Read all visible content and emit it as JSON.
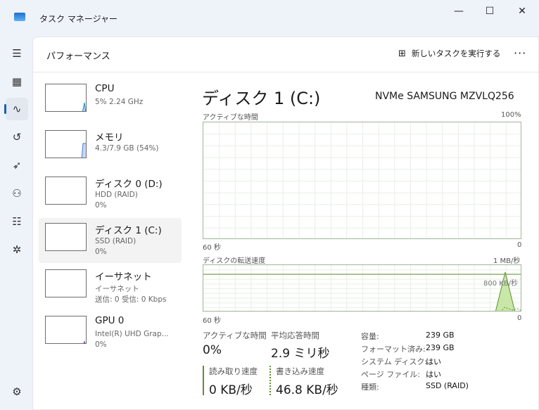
{
  "window": {
    "title": "タスク マネージャー",
    "minimize": "—",
    "maximize": "☐",
    "close": "✕"
  },
  "sidebar": {
    "items": [
      {
        "name": "hamburger-icon",
        "glyph": "☰"
      },
      {
        "name": "processes-icon",
        "glyph": "▦"
      },
      {
        "name": "performance-icon",
        "glyph": "∿"
      },
      {
        "name": "app-history-icon",
        "glyph": "↺"
      },
      {
        "name": "startup-icon",
        "glyph": "➶"
      },
      {
        "name": "users-icon",
        "glyph": "⚇"
      },
      {
        "name": "details-icon",
        "glyph": "☷"
      },
      {
        "name": "services-icon",
        "glyph": "✲"
      }
    ],
    "settings": "⚙"
  },
  "header": {
    "title": "パフォーマンス",
    "new_task": "新しいタスクを実行する",
    "more": "···"
  },
  "devices": [
    {
      "name": "CPU",
      "sub1": "5%  2.24 GHz",
      "sub2": "",
      "color": "#1e8cbf"
    },
    {
      "name": "メモリ",
      "sub1": "4.3/7.9 GB (54%)",
      "sub2": "",
      "color": "#4a7bd0"
    },
    {
      "name": "ディスク 0 (D:)",
      "sub1": "HDD (RAID)",
      "sub2": "0%",
      "color": "#5e8f2e"
    },
    {
      "name": "ディスク 1 (C:)",
      "sub1": "SSD (RAID)",
      "sub2": "0%",
      "color": "#5e8f2e"
    },
    {
      "name": "イーサネット",
      "sub1": "イーサネット",
      "sub2": "送信: 0 受信: 0 Kbps",
      "color": "#a35b20"
    },
    {
      "name": "GPU 0",
      "sub1": "Intel(R) UHD Grap...",
      "sub2": "0%",
      "color": "#7b3fb0"
    }
  ],
  "detail": {
    "title": "ディスク 1 (C:)",
    "model": "NVMe SAMSUNG MZVLQ256",
    "chart1": {
      "label": "アクティブな時間",
      "max": "100%",
      "xleft": "60 秒",
      "xright": "0"
    },
    "chart2": {
      "label": "ディスクの転送速度",
      "max": "1 MB/秒",
      "scale_line": "800 KB/秒",
      "xleft": "60 秒",
      "xright": "0"
    },
    "stats": {
      "active_label": "アクティブな時間",
      "active": "0%",
      "resp_label": "平均応答時間",
      "resp": "2.9 ミリ秒",
      "read_label": "読み取り速度",
      "read": "0 KB/秒",
      "write_label": "書き込み速度",
      "write": "46.8 KB/秒"
    },
    "props": [
      {
        "k": "容量:",
        "v": "239 GB"
      },
      {
        "k": "フォーマット済み:",
        "v": "239 GB"
      },
      {
        "k": "システム ディスク:",
        "v": "はい"
      },
      {
        "k": "ページ ファイル:",
        "v": "はい"
      },
      {
        "k": "種類:",
        "v": "SSD (RAID)"
      }
    ]
  },
  "colors": {
    "disk": "#5e8f2e",
    "disk_fill": "#c9e7a7",
    "accent": "#1a5fb4"
  }
}
